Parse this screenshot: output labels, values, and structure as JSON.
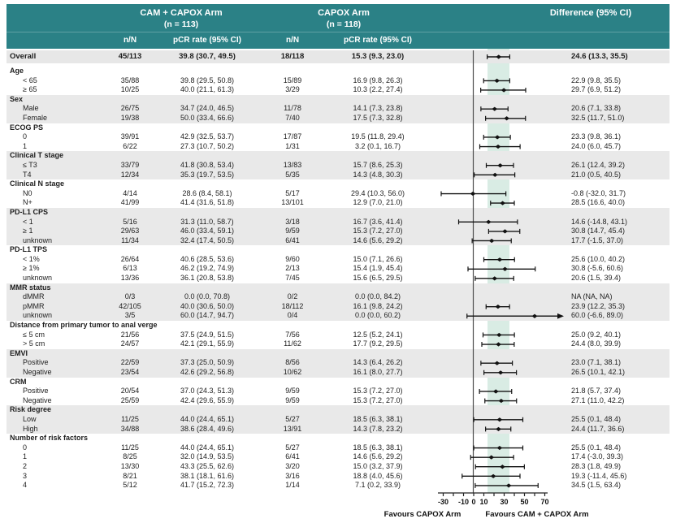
{
  "header": {
    "arm1_line1": "CAM + CAPOX Arm",
    "arm1_line2": "(n = 113)",
    "arm2_line1": "CAPOX Arm",
    "arm2_line2": "(n = 118)",
    "difference": "Difference (95% CI)",
    "col_nN": "n/N",
    "col_pcr": "pCR rate (95% CI)"
  },
  "axis": {
    "tick_labels": [
      "-30",
      "-10",
      "0",
      "10",
      "30",
      "50",
      "70"
    ],
    "tick_values": [
      -30,
      -10,
      0,
      10,
      30,
      50,
      70
    ],
    "minor_tick_step": 10,
    "range": [
      -35,
      73
    ],
    "favours_left": "Favours CAPOX Arm",
    "favours_right": "Favours CAM + CAPOX Arm"
  },
  "colors": {
    "header_teal": "#2b8186",
    "stripe_gray": "#e9e9e9",
    "overall_gray": "#e7e7e7",
    "ci_band_mint": "#d9ece4",
    "ci_line": "#121212",
    "zero_line": "#4d4d4d",
    "axis_line": "#222222"
  },
  "chart_data": {
    "type": "forest",
    "x_axis": {
      "labeled_ticks": [
        -30,
        -10,
        0,
        10,
        30,
        50,
        70
      ],
      "range": [
        -35,
        73
      ],
      "zero_ref": 0,
      "shaded_band": [
        13.3,
        35.5
      ]
    },
    "overall": {
      "label": "Overall",
      "n1": "45/113",
      "pcr1": "39.8 (30.7, 49.5)",
      "n2": "18/118",
      "pcr2": "15.3 (9.3, 23.0)",
      "diff": "24.6 (13.3, 35.5)",
      "est": 24.6,
      "lo": 13.3,
      "hi": 35.5
    },
    "groups": [
      {
        "label": "Age",
        "shaded": false,
        "rows": [
          {
            "label": "< 65",
            "n1": "35/88",
            "pcr1": "39.8 (29.5, 50.8)",
            "n2": "15/89",
            "pcr2": "16.9 (9.8, 26.3)",
            "diff": "22.9 (9.8, 35.5)",
            "est": 22.9,
            "lo": 9.8,
            "hi": 35.5
          },
          {
            "label": "≥ 65",
            "n1": "10/25",
            "pcr1": "40.0 (21.1, 61.3)",
            "n2": "3/29",
            "pcr2": "10.3 (2.2, 27.4)",
            "diff": "29.7 (6.9, 51.2)",
            "est": 29.7,
            "lo": 6.9,
            "hi": 51.2
          }
        ]
      },
      {
        "label": "Sex",
        "shaded": true,
        "rows": [
          {
            "label": "Male",
            "n1": "26/75",
            "pcr1": "34.7 (24.0, 46.5)",
            "n2": "11/78",
            "pcr2": "14.1 (7.3, 23.8)",
            "diff": "20.6 (7.1, 33.8)",
            "est": 20.6,
            "lo": 7.1,
            "hi": 33.8
          },
          {
            "label": "Female",
            "n1": "19/38",
            "pcr1": "50.0 (33.4, 66.6)",
            "n2": "7/40",
            "pcr2": "17.5 (7.3, 32.8)",
            "diff": "32.5 (11.7, 51.0)",
            "est": 32.5,
            "lo": 11.7,
            "hi": 51.0
          }
        ]
      },
      {
        "label": "ECOG PS",
        "shaded": false,
        "rows": [
          {
            "label": "0",
            "n1": "39/91",
            "pcr1": "42.9 (32.5, 53.7)",
            "n2": "17/87",
            "pcr2": "19.5 (11.8, 29.4)",
            "diff": "23.3 (9.8, 36.1)",
            "est": 23.3,
            "lo": 9.8,
            "hi": 36.1
          },
          {
            "label": "1",
            "n1": "6/22",
            "pcr1": "27.3 (10.7, 50.2)",
            "n2": "1/31",
            "pcr2": "3.2 (0.1, 16.7)",
            "diff": "24.0 (6.0, 45.7)",
            "est": 24.0,
            "lo": 6.0,
            "hi": 45.7
          }
        ]
      },
      {
        "label": "Clinical T stage",
        "shaded": true,
        "rows": [
          {
            "label": "≤ T3",
            "n1": "33/79",
            "pcr1": "41.8 (30.8, 53.4)",
            "n2": "13/83",
            "pcr2": "15.7 (8.6, 25.3)",
            "diff": "26.1 (12.4, 39.2)",
            "est": 26.1,
            "lo": 12.4,
            "hi": 39.2
          },
          {
            "label": "T4",
            "n1": "12/34",
            "pcr1": "35.3 (19.7, 53.5)",
            "n2": "5/35",
            "pcr2": "14.3 (4.8, 30.3)",
            "diff": "21.0 (0.5, 40.5)",
            "est": 21.0,
            "lo": 0.5,
            "hi": 40.5
          }
        ]
      },
      {
        "label": "Clinical N stage",
        "shaded": false,
        "rows": [
          {
            "label": "N0",
            "n1": "4/14",
            "pcr1": "28.6 (8.4, 58.1)",
            "n2": "5/17",
            "pcr2": "29.4 (10.3, 56.0)",
            "diff": "-0.8 (-32.0, 31.7)",
            "est": -0.8,
            "lo": -32.0,
            "hi": 31.7
          },
          {
            "label": "N+",
            "n1": "41/99",
            "pcr1": "41.4 (31.6, 51.8)",
            "n2": "13/101",
            "pcr2": "12.9 (7.0, 21.0)",
            "diff": "28.5 (16.6, 40.0)",
            "est": 28.5,
            "lo": 16.6,
            "hi": 40.0
          }
        ]
      },
      {
        "label": "PD-L1 CPS",
        "shaded": true,
        "rows": [
          {
            "label": "< 1",
            "n1": "5/16",
            "pcr1": "31.3 (11.0, 58.7)",
            "n2": "3/18",
            "pcr2": "16.7 (3.6, 41.4)",
            "diff": "14.6 (-14.8, 43.1)",
            "est": 14.6,
            "lo": -14.8,
            "hi": 43.1
          },
          {
            "label": "≥ 1",
            "n1": "29/63",
            "pcr1": "46.0 (33.4, 59.1)",
            "n2": "9/59",
            "pcr2": "15.3 (7.2, 27.0)",
            "diff": "30.8 (14.7, 45.4)",
            "est": 30.8,
            "lo": 14.7,
            "hi": 45.4
          },
          {
            "label": "unknown",
            "n1": "11/34",
            "pcr1": "32.4 (17.4, 50.5)",
            "n2": "6/41",
            "pcr2": "14.6 (5.6, 29.2)",
            "diff": "17.7 (-1.5, 37.0)",
            "est": 17.7,
            "lo": -1.5,
            "hi": 37.0
          }
        ]
      },
      {
        "label": "PD-L1 TPS",
        "shaded": false,
        "rows": [
          {
            "label": "< 1%",
            "n1": "26/64",
            "pcr1": "40.6 (28.5, 53.6)",
            "n2": "9/60",
            "pcr2": "15.0 (7.1, 26.6)",
            "diff": "25.6 (10.0, 40.2)",
            "est": 25.6,
            "lo": 10.0,
            "hi": 40.2
          },
          {
            "label": "≥ 1%",
            "n1": "6/13",
            "pcr1": "46.2 (19.2, 74.9)",
            "n2": "2/13",
            "pcr2": "15.4 (1.9, 45.4)",
            "diff": "30.8 (-5.6, 60.6)",
            "est": 30.8,
            "lo": -5.6,
            "hi": 60.6
          },
          {
            "label": "unknown",
            "n1": "13/36",
            "pcr1": "36.1 (20.8, 53.8)",
            "n2": "7/45",
            "pcr2": "15.6 (6.5, 29.5)",
            "diff": "20.6 (1.5, 39.4)",
            "est": 20.6,
            "lo": 1.5,
            "hi": 39.4
          }
        ]
      },
      {
        "label": "MMR status",
        "shaded": true,
        "rows": [
          {
            "label": "dMMR",
            "n1": "0/3",
            "pcr1": "0.0 (0.0, 70.8)",
            "n2": "0/2",
            "pcr2": "0.0 (0.0, 84.2)",
            "diff": "NA (NA, NA)",
            "est": null,
            "lo": null,
            "hi": null
          },
          {
            "label": "pMMR",
            "n1": "42/105",
            "pcr1": "40.0 (30.6, 50.0)",
            "n2": "18/112",
            "pcr2": "16.1 (9.8, 24.2)",
            "diff": "23.9 (12.2, 35.3)",
            "est": 23.9,
            "lo": 12.2,
            "hi": 35.3
          },
          {
            "label": "unknown",
            "n1": "3/5",
            "pcr1": "60.0 (14.7, 94.7)",
            "n2": "0/4",
            "pcr2": "0.0 (0.0, 60.2)",
            "diff": "60.0 (-6.6, 89.0)",
            "est": 60.0,
            "lo": -6.6,
            "hi": 89.0,
            "arrow_right": true
          }
        ]
      },
      {
        "label": "Distance from primary tumor to anal verge",
        "shaded": false,
        "rows": [
          {
            "label": "≤ 5 cm",
            "n1": "21/56",
            "pcr1": "37.5 (24.9, 51.5)",
            "n2": "7/56",
            "pcr2": "12.5 (5.2, 24.1)",
            "diff": "25.0 (9.2, 40.1)",
            "est": 25.0,
            "lo": 9.2,
            "hi": 40.1
          },
          {
            "label": "> 5 cm",
            "n1": "24/57",
            "pcr1": "42.1 (29.1, 55.9)",
            "n2": "11/62",
            "pcr2": "17.7 (9.2, 29.5)",
            "diff": "24.4 (8.0, 39.9)",
            "est": 24.4,
            "lo": 8.0,
            "hi": 39.9
          }
        ]
      },
      {
        "label": "EMVI",
        "shaded": true,
        "rows": [
          {
            "label": "Positive",
            "n1": "22/59",
            "pcr1": "37.3 (25.0, 50.9)",
            "n2": "8/56",
            "pcr2": "14.3 (6.4, 26.2)",
            "diff": "23.0 (7.1, 38.1)",
            "est": 23.0,
            "lo": 7.1,
            "hi": 38.1
          },
          {
            "label": "Negative",
            "n1": "23/54",
            "pcr1": "42.6 (29.2, 56.8)",
            "n2": "10/62",
            "pcr2": "16.1 (8.0, 27.7)",
            "diff": "26.5 (10.1, 42.1)",
            "est": 26.5,
            "lo": 10.1,
            "hi": 42.1
          }
        ]
      },
      {
        "label": "CRM",
        "shaded": false,
        "rows": [
          {
            "label": "Positive",
            "n1": "20/54",
            "pcr1": "37.0 (24.3, 51.3)",
            "n2": "9/59",
            "pcr2": "15.3 (7.2, 27.0)",
            "diff": "21.8 (5.7, 37.4)",
            "est": 21.8,
            "lo": 5.7,
            "hi": 37.4
          },
          {
            "label": "Negative",
            "n1": "25/59",
            "pcr1": "42.4 (29.6, 55.9)",
            "n2": "9/59",
            "pcr2": "15.3 (7.2, 27.0)",
            "diff": "27.1 (11.0, 42.2)",
            "est": 27.1,
            "lo": 11.0,
            "hi": 42.2
          }
        ]
      },
      {
        "label": "Risk degree",
        "shaded": true,
        "rows": [
          {
            "label": "Low",
            "n1": "11/25",
            "pcr1": "44.0 (24.4, 65.1)",
            "n2": "5/27",
            "pcr2": "18.5 (6.3, 38.1)",
            "diff": "25.5 (0.1, 48.4)",
            "est": 25.5,
            "lo": 0.1,
            "hi": 48.4
          },
          {
            "label": "High",
            "n1": "34/88",
            "pcr1": "38.6 (28.4, 49.6)",
            "n2": "13/91",
            "pcr2": "14.3 (7.8, 23.2)",
            "diff": "24.4 (11.7, 36.6)",
            "est": 24.4,
            "lo": 11.7,
            "hi": 36.6
          }
        ]
      },
      {
        "label": "Number of risk factors",
        "shaded": false,
        "rows": [
          {
            "label": "0",
            "n1": "11/25",
            "pcr1": "44.0 (24.4, 65.1)",
            "n2": "5/27",
            "pcr2": "18.5 (6.3, 38.1)",
            "diff": "25.5 (0.1, 48.4)",
            "est": 25.5,
            "lo": 0.1,
            "hi": 48.4
          },
          {
            "label": "1",
            "n1": "8/25",
            "pcr1": "32.0 (14.9, 53.5)",
            "n2": "6/41",
            "pcr2": "14.6 (5.6, 29.2)",
            "diff": "17.4 (-3.0, 39.3)",
            "est": 17.4,
            "lo": -3.0,
            "hi": 39.3
          },
          {
            "label": "2",
            "n1": "13/30",
            "pcr1": "43.3 (25.5, 62.6)",
            "n2": "3/20",
            "pcr2": "15.0 (3.2, 37.9)",
            "diff": "28.3 (1.8, 49.9)",
            "est": 28.3,
            "lo": 1.8,
            "hi": 49.9
          },
          {
            "label": "3",
            "n1": "8/21",
            "pcr1": "38.1 (18.1, 61.6)",
            "n2": "3/16",
            "pcr2": "18.8 (4.0, 45.6)",
            "diff": "19.3 (-11.4, 45.6)",
            "est": 19.3,
            "lo": -11.4,
            "hi": 45.6
          },
          {
            "label": "4",
            "n1": "5/12",
            "pcr1": "41.7 (15.2, 72.3)",
            "n2": "1/14",
            "pcr2": "7.1 (0.2, 33.9)",
            "diff": "34.5 (1.5, 63.4)",
            "est": 34.5,
            "lo": 1.5,
            "hi": 63.4
          }
        ]
      }
    ]
  }
}
